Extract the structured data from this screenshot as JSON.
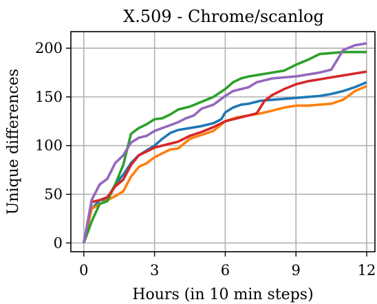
{
  "chart_data": {
    "type": "line",
    "title": "X.509 - Chrome/scanlog",
    "xlabel": "Hours (in 10 min steps)",
    "ylabel": "Unique differences",
    "xlim": [
      -0.55,
      12.35
    ],
    "ylim": [
      -9,
      217
    ],
    "xticks": [
      0,
      3,
      6,
      9,
      12
    ],
    "yticks": [
      0,
      50,
      100,
      150,
      200
    ],
    "grid": true,
    "legend": "none",
    "series": [
      {
        "color": "#1f77b4",
        "points": [
          [
            0,
            0
          ],
          [
            0.33,
            35
          ],
          [
            0.67,
            44
          ],
          [
            1,
            45
          ],
          [
            1.33,
            60
          ],
          [
            1.67,
            70
          ],
          [
            2,
            82
          ],
          [
            2.33,
            90
          ],
          [
            2.67,
            95
          ],
          [
            3,
            100
          ],
          [
            3.33,
            107
          ],
          [
            3.67,
            113
          ],
          [
            4,
            116
          ],
          [
            4.5,
            118
          ],
          [
            5,
            120
          ],
          [
            5.5,
            123
          ],
          [
            5.83,
            127
          ],
          [
            6,
            134
          ],
          [
            6.33,
            139
          ],
          [
            6.67,
            142
          ],
          [
            7,
            143
          ],
          [
            7.5,
            146
          ],
          [
            8,
            147
          ],
          [
            8.5,
            148
          ],
          [
            9,
            149
          ],
          [
            9.5,
            150
          ],
          [
            10,
            151
          ],
          [
            10.5,
            153
          ],
          [
            11,
            156
          ],
          [
            11.5,
            160
          ],
          [
            12,
            165
          ]
        ]
      },
      {
        "color": "#ff7f0e",
        "points": [
          [
            0,
            0
          ],
          [
            0.33,
            35
          ],
          [
            0.67,
            40
          ],
          [
            1,
            44
          ],
          [
            1.33,
            48
          ],
          [
            1.67,
            53
          ],
          [
            2,
            68
          ],
          [
            2.33,
            78
          ],
          [
            2.67,
            82
          ],
          [
            3,
            88
          ],
          [
            3.33,
            92
          ],
          [
            3.67,
            96
          ],
          [
            4,
            97
          ],
          [
            4.5,
            107
          ],
          [
            5,
            111
          ],
          [
            5.5,
            115
          ],
          [
            6,
            125
          ],
          [
            6.5,
            129
          ],
          [
            7,
            131
          ],
          [
            7.5,
            133
          ],
          [
            8,
            136
          ],
          [
            8.5,
            139
          ],
          [
            9,
            141
          ],
          [
            9.5,
            141
          ],
          [
            10,
            142
          ],
          [
            10.5,
            143
          ],
          [
            11,
            147
          ],
          [
            11.5,
            156
          ],
          [
            12,
            161
          ]
        ]
      },
      {
        "color": "#2ca02c",
        "points": [
          [
            0,
            0
          ],
          [
            0.33,
            22
          ],
          [
            0.67,
            40
          ],
          [
            1,
            43
          ],
          [
            1.33,
            60
          ],
          [
            1.67,
            80
          ],
          [
            2,
            112
          ],
          [
            2.33,
            118
          ],
          [
            2.67,
            122
          ],
          [
            3,
            127
          ],
          [
            3.33,
            128
          ],
          [
            3.67,
            132
          ],
          [
            4,
            137
          ],
          [
            4.5,
            140
          ],
          [
            5,
            145
          ],
          [
            5.5,
            150
          ],
          [
            6,
            158
          ],
          [
            6.33,
            165
          ],
          [
            6.67,
            169
          ],
          [
            7,
            171
          ],
          [
            7.5,
            173
          ],
          [
            8,
            175
          ],
          [
            8.5,
            177
          ],
          [
            9,
            183
          ],
          [
            9.5,
            188
          ],
          [
            10,
            194
          ],
          [
            10.5,
            195
          ],
          [
            11,
            196
          ],
          [
            11.5,
            196
          ],
          [
            12,
            196
          ]
        ]
      },
      {
        "color": "#d62728",
        "points": [
          [
            0,
            0
          ],
          [
            0.33,
            42
          ],
          [
            0.67,
            44
          ],
          [
            1,
            47
          ],
          [
            1.33,
            58
          ],
          [
            1.67,
            65
          ],
          [
            2,
            80
          ],
          [
            2.33,
            90
          ],
          [
            2.67,
            94
          ],
          [
            3,
            98
          ],
          [
            3.33,
            100
          ],
          [
            3.67,
            102
          ],
          [
            4,
            104
          ],
          [
            4.5,
            110
          ],
          [
            5,
            114
          ],
          [
            5.5,
            119
          ],
          [
            6,
            125
          ],
          [
            6.5,
            128
          ],
          [
            7,
            131
          ],
          [
            7.33,
            133
          ],
          [
            7.67,
            146
          ],
          [
            8,
            152
          ],
          [
            8.5,
            158
          ],
          [
            9,
            163
          ],
          [
            9.5,
            166
          ],
          [
            10,
            168
          ],
          [
            10.5,
            170
          ],
          [
            11,
            172
          ],
          [
            11.5,
            174
          ],
          [
            12,
            176
          ]
        ]
      },
      {
        "color": "#9467bd",
        "points": [
          [
            0,
            0
          ],
          [
            0.33,
            44
          ],
          [
            0.67,
            60
          ],
          [
            1,
            66
          ],
          [
            1.33,
            82
          ],
          [
            1.67,
            90
          ],
          [
            2,
            103
          ],
          [
            2.33,
            108
          ],
          [
            2.67,
            110
          ],
          [
            3,
            115
          ],
          [
            3.33,
            118
          ],
          [
            3.67,
            121
          ],
          [
            4,
            124
          ],
          [
            4.33,
            128
          ],
          [
            4.67,
            131
          ],
          [
            5,
            138
          ],
          [
            5.5,
            142
          ],
          [
            6,
            151
          ],
          [
            6.33,
            156
          ],
          [
            6.67,
            158
          ],
          [
            7,
            160
          ],
          [
            7.33,
            165
          ],
          [
            7.67,
            167
          ],
          [
            8,
            169
          ],
          [
            8.5,
            170
          ],
          [
            9,
            171
          ],
          [
            9.5,
            173
          ],
          [
            10,
            175
          ],
          [
            10.5,
            178
          ],
          [
            11,
            198
          ],
          [
            11.5,
            203
          ],
          [
            12,
            205
          ]
        ]
      }
    ]
  }
}
